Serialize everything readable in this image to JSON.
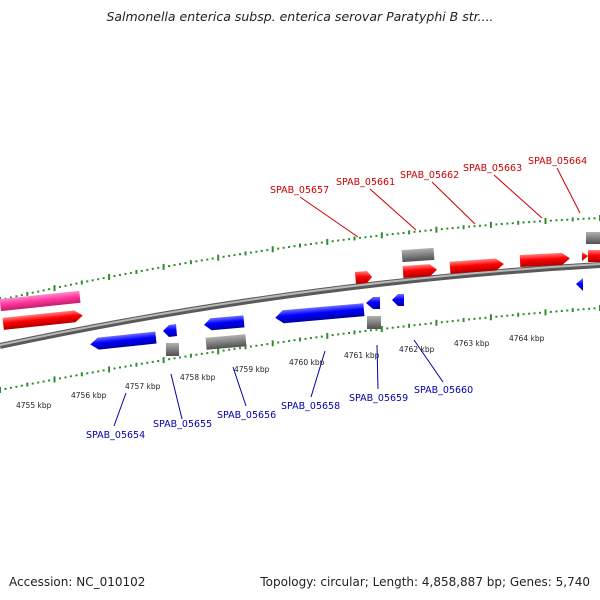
{
  "title": "Salmonella enterica subsp. enterica serovar Paratyphi B str....",
  "accession_text": "Accession: NC_010102",
  "summary_text": "Topology: circular; Length: 4,858,887 bp; Genes: 5,740",
  "colors": {
    "forward_gene": "#ff0000",
    "reverse_gene": "#0000ff",
    "pseudo_gene": "#808080",
    "rna_feature": "#ff3399",
    "tick": "#2e8b2e",
    "backbone": "#888888",
    "forward_label": "#cc0000",
    "reverse_label": "#0000aa"
  },
  "scale_labels": [
    "4755 kbp",
    "4756 kbp",
    "4757 kbp",
    "4758 kbp",
    "4759 kbp",
    "4760 kbp",
    "4761 kbp",
    "4762 kbp",
    "4763 kbp",
    "4764 kbp"
  ],
  "forward_labels": [
    "SPAB_05657",
    "SPAB_05661",
    "SPAB_05662",
    "SPAB_05663",
    "SPAB_05664"
  ],
  "reverse_labels": [
    "SPAB_05654",
    "SPAB_05655",
    "SPAB_05656",
    "SPAB_05658",
    "SPAB_05659",
    "SPAB_05660"
  ]
}
